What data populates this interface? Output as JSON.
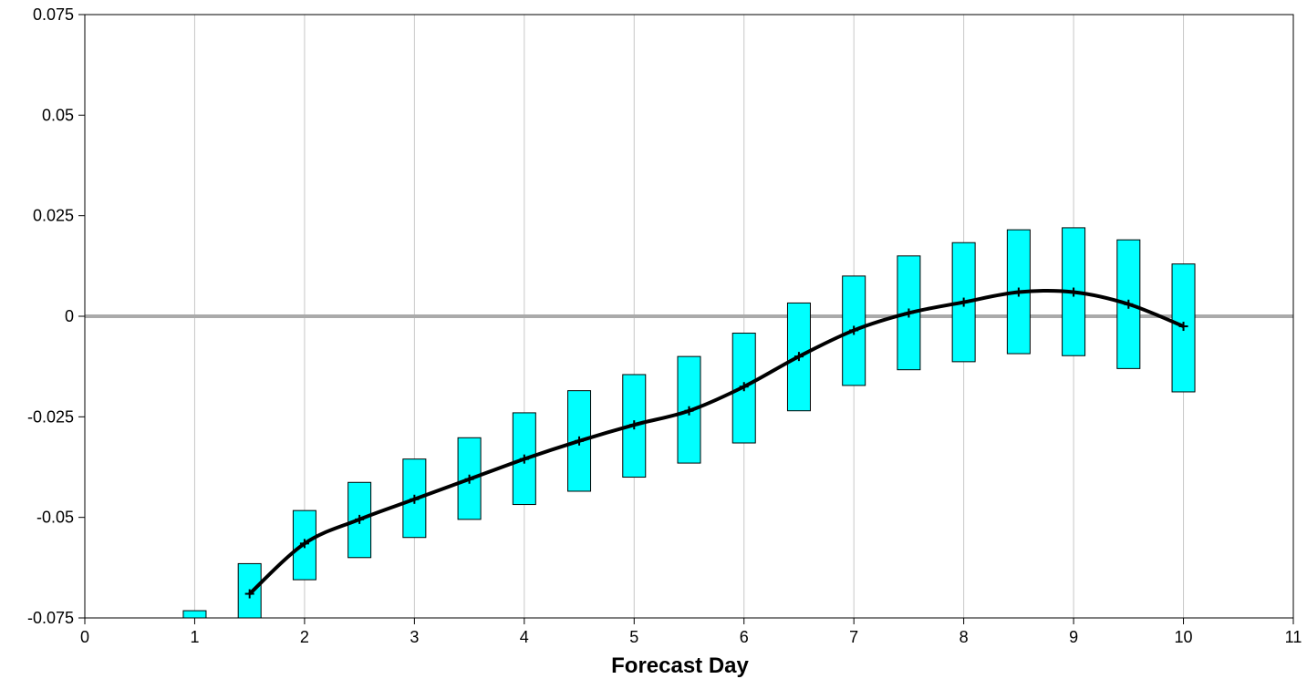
{
  "chart_data": {
    "type": "line",
    "title": "",
    "xlabel": "Forecast Day",
    "ylabel": "",
    "xlim": [
      0,
      11
    ],
    "ylim": [
      -0.075,
      0.075
    ],
    "xticks": [
      0,
      1,
      2,
      3,
      4,
      5,
      6,
      7,
      8,
      9,
      10,
      11
    ],
    "xtick_labels": [
      "0",
      "1",
      "2",
      "3",
      "4",
      "5",
      "6",
      "7",
      "8",
      "9",
      "10",
      "11"
    ],
    "yticks": [
      -0.075,
      -0.05,
      -0.025,
      0,
      0.025,
      0.05,
      0.075
    ],
    "ytick_labels": [
      "-0.075",
      "-0.05",
      "-0.025",
      "0",
      "0.025",
      "0.05",
      "0.075"
    ],
    "grid": "vertical",
    "zero_line": 0,
    "line": {
      "x": [
        1.5,
        2,
        2.5,
        3,
        3.5,
        4,
        4.5,
        5,
        5.5,
        6,
        6.5,
        7,
        7.5,
        8,
        8.5,
        9,
        9.5,
        10
      ],
      "y": [
        -0.069,
        -0.0565,
        -0.0505,
        -0.0455,
        -0.0405,
        -0.0355,
        -0.031,
        -0.027,
        -0.0235,
        -0.0175,
        -0.01,
        -0.0035,
        0.0008,
        0.0035,
        0.006,
        0.006,
        0.003,
        -0.0025
      ]
    },
    "bars": {
      "x": [
        1,
        1.5,
        2,
        2.5,
        3,
        3.5,
        4,
        4.5,
        5,
        5.5,
        6,
        6.5,
        7,
        7.5,
        8,
        8.5,
        9,
        9.5,
        10
      ],
      "low": [
        -0.075,
        -0.075,
        -0.0655,
        -0.06,
        -0.055,
        -0.0505,
        -0.0468,
        -0.0435,
        -0.04,
        -0.0365,
        -0.0315,
        -0.0235,
        -0.0172,
        -0.0133,
        -0.0113,
        -0.0093,
        -0.0098,
        -0.013,
        -0.0188
      ],
      "high": [
        -0.0732,
        -0.0615,
        -0.0483,
        -0.0413,
        -0.0355,
        -0.0302,
        -0.024,
        -0.0185,
        -0.0145,
        -0.01,
        -0.0042,
        0.0033,
        0.01,
        0.015,
        0.0183,
        0.0215,
        0.022,
        0.019,
        0.013
      ]
    },
    "colors": {
      "bar_fill": "#00ffff",
      "bar_stroke": "#000000",
      "line": "#000000",
      "grid": "#c8c8c8",
      "zero_line": "#aaaaaa",
      "axis": "#000000"
    }
  }
}
